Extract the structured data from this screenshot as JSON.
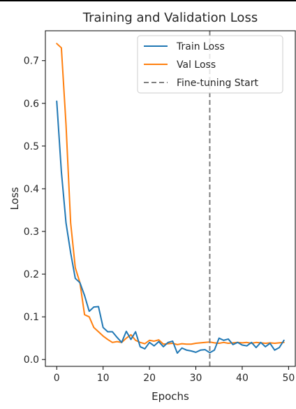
{
  "chart_data": {
    "type": "line",
    "title": "Training and Validation Loss",
    "xlabel": "Epochs",
    "ylabel": "Loss",
    "xlim": [
      -2.45,
      51.45
    ],
    "ylim": [
      -0.016,
      0.77
    ],
    "xticks": [
      0,
      10,
      20,
      30,
      40,
      50
    ],
    "yticks": [
      0.0,
      0.1,
      0.2,
      0.3,
      0.4,
      0.5,
      0.6,
      0.7
    ],
    "xtick_labels": [
      "0",
      "10",
      "20",
      "30",
      "40",
      "50"
    ],
    "ytick_labels": [
      "0.0",
      "0.1",
      "0.2",
      "0.3",
      "0.4",
      "0.5",
      "0.6",
      "0.7"
    ],
    "grid": false,
    "legend_position": "top-right",
    "x": [
      0,
      1,
      2,
      3,
      4,
      5,
      6,
      7,
      8,
      9,
      10,
      11,
      12,
      13,
      14,
      15,
      16,
      17,
      18,
      19,
      20,
      21,
      22,
      23,
      24,
      25,
      26,
      27,
      28,
      29,
      30,
      31,
      32,
      33,
      34,
      35,
      36,
      37,
      38,
      39,
      40,
      41,
      42,
      43,
      44,
      45,
      46,
      47,
      48,
      49
    ],
    "series": [
      {
        "name": "Train Loss",
        "color": "#1f77b4",
        "values": [
          0.605,
          0.44,
          0.32,
          0.25,
          0.19,
          0.18,
          0.15,
          0.113,
          0.123,
          0.124,
          0.075,
          0.065,
          0.065,
          0.052,
          0.04,
          0.066,
          0.047,
          0.065,
          0.03,
          0.025,
          0.04,
          0.032,
          0.042,
          0.03,
          0.04,
          0.043,
          0.015,
          0.027,
          0.022,
          0.02,
          0.017,
          0.022,
          0.023,
          0.016,
          0.022,
          0.05,
          0.045,
          0.048,
          0.035,
          0.04,
          0.034,
          0.032,
          0.04,
          0.028,
          0.04,
          0.03,
          0.038,
          0.022,
          0.028,
          0.045
        ]
      },
      {
        "name": "Val Loss",
        "color": "#ff7f0e",
        "values": [
          0.74,
          0.73,
          0.55,
          0.32,
          0.215,
          0.18,
          0.105,
          0.1,
          0.075,
          0.065,
          0.055,
          0.047,
          0.04,
          0.042,
          0.04,
          0.05,
          0.058,
          0.045,
          0.04,
          0.037,
          0.045,
          0.043,
          0.046,
          0.036,
          0.037,
          0.038,
          0.035,
          0.037,
          0.036,
          0.036,
          0.038,
          0.039,
          0.04,
          0.041,
          0.039,
          0.038,
          0.04,
          0.038,
          0.039,
          0.04,
          0.039,
          0.04,
          0.038,
          0.04,
          0.039,
          0.038,
          0.039,
          0.038,
          0.039,
          0.04
        ]
      }
    ],
    "vline": {
      "name": "Fine-tuning Start",
      "x": 33,
      "color": "#7f7f7f"
    }
  }
}
